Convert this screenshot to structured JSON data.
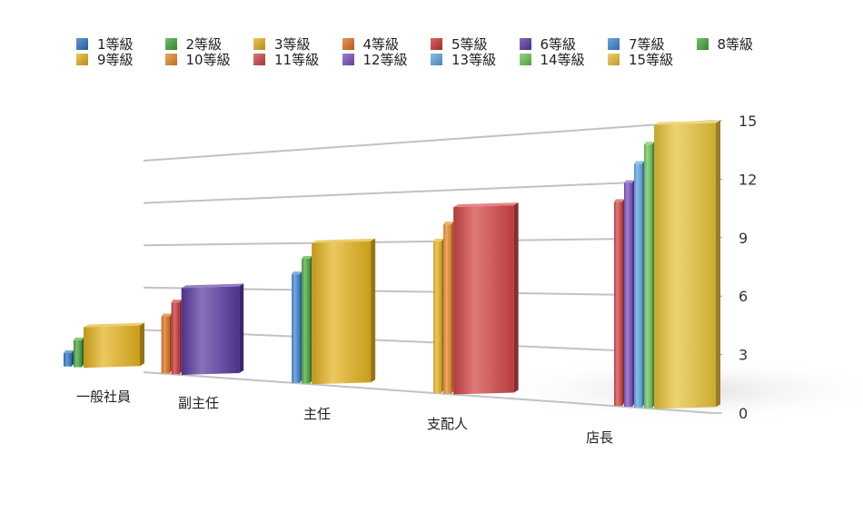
{
  "chart_data": {
    "type": "bar",
    "title": "",
    "xlabel": "",
    "ylabel": "",
    "ylim": [
      0,
      15
    ],
    "yticks": [
      "0",
      "3",
      "6",
      "9",
      "12",
      "15"
    ],
    "grid": true,
    "legend_position": "top",
    "categories": [
      "一般社員",
      "副主任",
      "主任",
      "支配人",
      "店長"
    ],
    "series": [
      {
        "name": "1等級",
        "color": "#2f74c4",
        "values": [
          1,
          null,
          null,
          null,
          null
        ]
      },
      {
        "name": "2等級",
        "color": "#46a53d",
        "values": [
          2,
          null,
          null,
          null,
          null
        ]
      },
      {
        "name": "3等級",
        "color": "#e3b21f",
        "values": [
          3,
          null,
          null,
          null,
          null
        ]
      },
      {
        "name": "4等級",
        "color": "#e0701f",
        "values": [
          null,
          4,
          null,
          null,
          null
        ]
      },
      {
        "name": "5等級",
        "color": "#cc3434",
        "values": [
          null,
          5,
          null,
          null,
          null
        ]
      },
      {
        "name": "6等級",
        "color": "#5a3aa0",
        "values": [
          null,
          6,
          null,
          null,
          null
        ]
      },
      {
        "name": "7等級",
        "color": "#3f86d6",
        "values": [
          null,
          null,
          7,
          null,
          null
        ]
      },
      {
        "name": "8等級",
        "color": "#4aa83e",
        "values": [
          null,
          null,
          8,
          null,
          null
        ]
      },
      {
        "name": "9等級",
        "color": "#e3b21f",
        "values": [
          null,
          null,
          9,
          9,
          null
        ]
      },
      {
        "name": "10等級",
        "color": "#e88a2a",
        "values": [
          null,
          null,
          null,
          10,
          null
        ]
      },
      {
        "name": "11等級",
        "color": "#d24545",
        "values": [
          null,
          null,
          null,
          11,
          11
        ]
      },
      {
        "name": "12等級",
        "color": "#7d52c0",
        "values": [
          null,
          null,
          null,
          null,
          12
        ]
      },
      {
        "name": "13等級",
        "color": "#5fa6e0",
        "values": [
          null,
          null,
          null,
          null,
          13
        ]
      },
      {
        "name": "14等級",
        "color": "#6cc45c",
        "values": [
          null,
          null,
          null,
          null,
          14
        ]
      },
      {
        "name": "15等級",
        "color": "#e8c23a",
        "values": [
          null,
          null,
          null,
          null,
          15
        ]
      }
    ]
  }
}
